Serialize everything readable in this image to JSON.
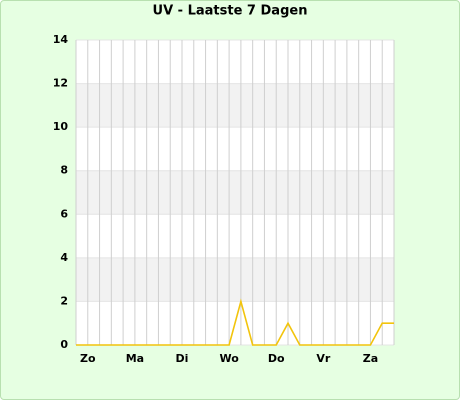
{
  "chart_data": {
    "type": "line",
    "title": "UV - Laatste 7 Dagen",
    "categories": [
      null,
      "Zo",
      null,
      null,
      null,
      "Ma",
      null,
      null,
      null,
      "Di",
      null,
      null,
      null,
      "Wo",
      null,
      null,
      null,
      "Do",
      null,
      null,
      null,
      "Vr",
      null,
      null,
      null,
      "Za",
      null,
      null
    ],
    "series": [
      {
        "name": "UV",
        "color": "#f2c40c",
        "values": [
          0,
          0,
          0,
          0,
          0,
          0,
          0,
          0,
          0,
          0,
          0,
          0,
          0,
          0,
          2,
          0,
          0,
          0,
          1,
          0,
          0,
          0,
          0,
          0,
          0,
          0,
          1,
          1
        ]
      }
    ],
    "ylim": [
      0,
      14
    ],
    "yticks": [
      0,
      2,
      4,
      6,
      8,
      10,
      12,
      14
    ],
    "grid": true
  }
}
